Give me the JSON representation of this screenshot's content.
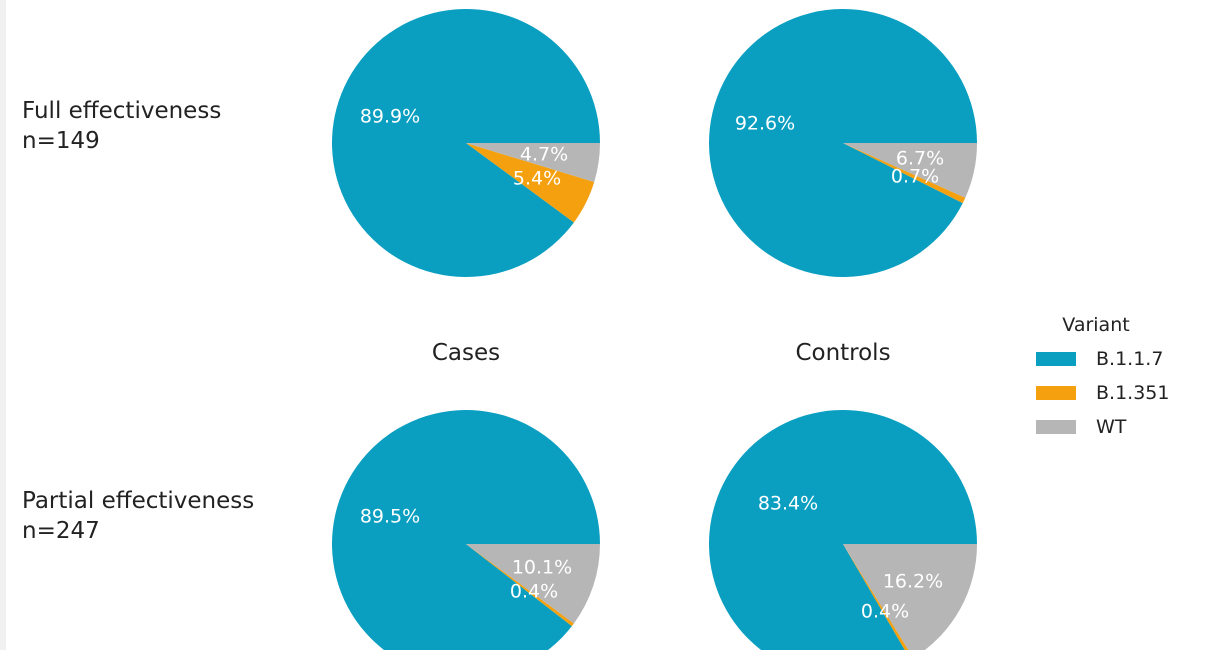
{
  "rows": [
    {
      "label_line1": "Full effectiveness",
      "label_line2": "n=149"
    },
    {
      "label_line1": "Partial effectiveness",
      "label_line2": "n=247"
    }
  ],
  "columns": [
    "Cases",
    "Controls"
  ],
  "legend": {
    "title": "Variant",
    "items": [
      {
        "label": "B.1.1.7",
        "color": "#0a9fc0"
      },
      {
        "label": "B.1.351",
        "color": "#f5a00f"
      },
      {
        "label": "WT",
        "color": "#b6b6b6"
      }
    ]
  },
  "chart_data": [
    {
      "type": "pie",
      "row": "Full effectiveness n=149",
      "column": "Cases",
      "slices": [
        {
          "label": "B.1.1.7",
          "value": 89.9,
          "text": "89.9%"
        },
        {
          "label": "B.1.351",
          "value": 5.4,
          "text": "5.4%"
        },
        {
          "label": "WT",
          "value": 4.7,
          "text": "4.7%"
        }
      ]
    },
    {
      "type": "pie",
      "row": "Full effectiveness n=149",
      "column": "Controls",
      "slices": [
        {
          "label": "B.1.1.7",
          "value": 92.6,
          "text": "92.6%"
        },
        {
          "label": "B.1.351",
          "value": 0.7,
          "text": "0.7%"
        },
        {
          "label": "WT",
          "value": 6.7,
          "text": "6.7%"
        }
      ]
    },
    {
      "type": "pie",
      "row": "Partial effectiveness n=247",
      "column": "Cases",
      "slices": [
        {
          "label": "B.1.1.7",
          "value": 89.5,
          "text": "89.5%"
        },
        {
          "label": "B.1.351",
          "value": 0.4,
          "text": "0.4%"
        },
        {
          "label": "WT",
          "value": 10.1,
          "text": "10.1%"
        }
      ]
    },
    {
      "type": "pie",
      "row": "Partial effectiveness n=247",
      "column": "Controls",
      "slices": [
        {
          "label": "B.1.1.7",
          "value": 83.4,
          "text": "83.4%"
        },
        {
          "label": "B.1.351",
          "value": 0.4,
          "text": "0.4%"
        },
        {
          "label": "WT",
          "value": 16.2,
          "text": "16.2%"
        }
      ]
    }
  ]
}
